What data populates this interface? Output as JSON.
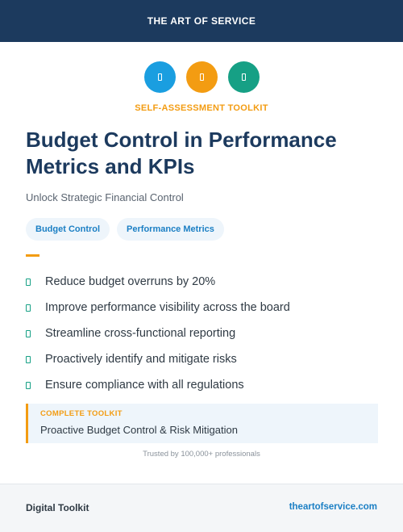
{
  "header": {
    "brand": "THE ART OF SERVICE"
  },
  "icons": [
    {
      "name": "document-icon",
      "color": "#1a9ee0"
    },
    {
      "name": "document-icon",
      "color": "#f39c12"
    },
    {
      "name": "document-icon",
      "color": "#16a085"
    }
  ],
  "eyebrow": "SELF-ASSESSMENT TOOLKIT",
  "title": "Budget Control in Performance Metrics and KPIs",
  "subtitle": "Unlock Strategic Financial Control",
  "tags": [
    "Budget Control",
    "Performance Metrics"
  ],
  "benefits": [
    "Reduce budget overruns by 20%",
    "Improve performance visibility across the board",
    "Streamline cross-functional reporting",
    "Proactively identify and mitigate risks",
    "Ensure compliance with all regulations"
  ],
  "callout": {
    "label": "COMPLETE TOOLKIT",
    "text": "Proactive Budget Control & Risk Mitigation"
  },
  "trusted": "Trusted by 100,000+ professionals",
  "footer": {
    "left": "Digital Toolkit",
    "right": "theartofservice.com"
  },
  "colors": {
    "navy": "#1c3a5e",
    "accent": "#f39c12",
    "blue": "#1b7fc4",
    "green": "#16a085"
  }
}
